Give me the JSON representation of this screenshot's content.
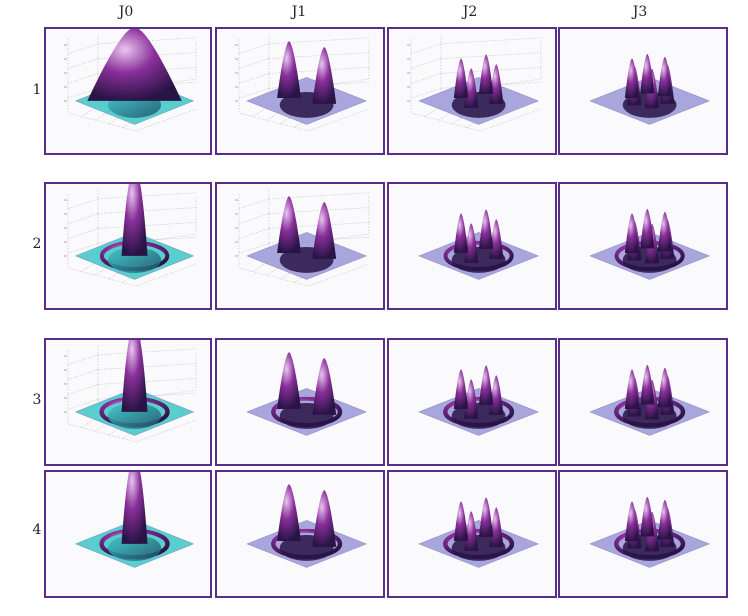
{
  "columns": [
    "J0",
    "J1",
    "J2",
    "J3"
  ],
  "rows": [
    "1",
    "2",
    "3",
    "4"
  ],
  "panels": [
    {
      "row": "1",
      "col": "J0",
      "axes": true,
      "ring_count": 0,
      "peak": "wide",
      "palette": "cyan-magenta"
    },
    {
      "row": "1",
      "col": "J1",
      "axes": true,
      "ring_count": 0,
      "peak": "dipole",
      "palette": "violet"
    },
    {
      "row": "1",
      "col": "J2",
      "axes": true,
      "ring_count": 0,
      "peak": "quad",
      "palette": "violet"
    },
    {
      "row": "1",
      "col": "J3",
      "axes": false,
      "ring_count": 0,
      "peak": "hex",
      "palette": "violet"
    },
    {
      "row": "2",
      "col": "J0",
      "axes": true,
      "ring_count": 1,
      "peak": "tall",
      "palette": "cyan-magenta"
    },
    {
      "row": "2",
      "col": "J1",
      "axes": true,
      "ring_count": 0,
      "peak": "dipole",
      "palette": "violet"
    },
    {
      "row": "2",
      "col": "J2",
      "axes": false,
      "ring_count": 1,
      "peak": "quad",
      "palette": "violet"
    },
    {
      "row": "2",
      "col": "J3",
      "axes": false,
      "ring_count": 1,
      "peak": "hex",
      "palette": "violet"
    },
    {
      "row": "3",
      "col": "J0",
      "axes": true,
      "ring_count": 2,
      "peak": "tall",
      "palette": "cyan-magenta"
    },
    {
      "row": "3",
      "col": "J1",
      "axes": false,
      "ring_count": 2,
      "peak": "dipole",
      "palette": "violet"
    },
    {
      "row": "3",
      "col": "J2",
      "axes": false,
      "ring_count": 2,
      "peak": "quad",
      "palette": "violet"
    },
    {
      "row": "3",
      "col": "J3",
      "axes": false,
      "ring_count": 2,
      "peak": "hex",
      "palette": "violet"
    },
    {
      "row": "4",
      "col": "J0",
      "axes": false,
      "ring_count": 3,
      "peak": "tall",
      "palette": "cyan-magenta"
    },
    {
      "row": "4",
      "col": "J1",
      "axes": false,
      "ring_count": 3,
      "peak": "dipole",
      "palette": "violet"
    },
    {
      "row": "4",
      "col": "J2",
      "axes": false,
      "ring_count": 3,
      "peak": "quad",
      "palette": "violet"
    },
    {
      "row": "4",
      "col": "J3",
      "axes": false,
      "ring_count": 3,
      "peak": "hex",
      "palette": "violet"
    }
  ],
  "colors": {
    "frame": "#5a2d88",
    "surface_dark": "#2a1446",
    "surface_mid": "#8a2f9a",
    "surface_light": "#e9c6f0",
    "plane": "#9a98d8",
    "cyan": "#3fc6c8",
    "grid": "#c8c8c8"
  }
}
